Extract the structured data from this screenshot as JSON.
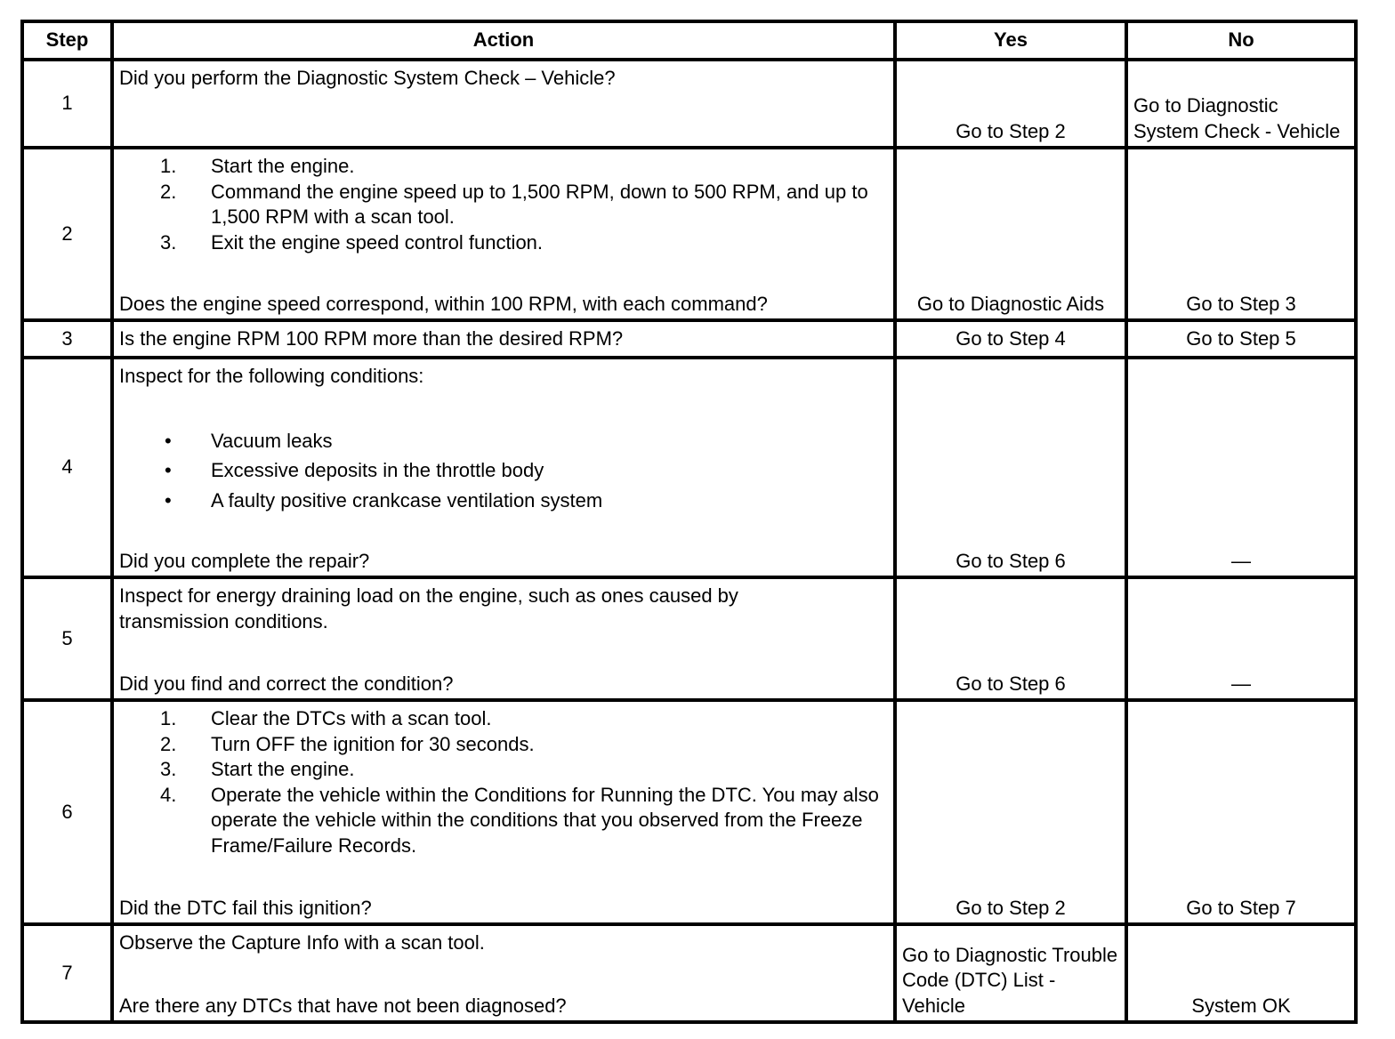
{
  "headers": {
    "step": "Step",
    "action": "Action",
    "yes": "Yes",
    "no": "No"
  },
  "rows": [
    {
      "step": "1",
      "intro": "Did you perform the Diagnostic System Check – Vehicle?",
      "yes": "Go to Step 2",
      "no": "Go to Diagnostic System Check - Vehicle"
    },
    {
      "step": "2",
      "list": [
        {
          "marker": "1.",
          "text": "Start the engine."
        },
        {
          "marker": "2.",
          "text": "Command the engine speed up to 1,500 RPM, down to 500 RPM, and up to 1,500 RPM with a scan tool."
        },
        {
          "marker": "3.",
          "text": "Exit the engine speed control function."
        }
      ],
      "question": "Does the engine speed correspond, within 100 RPM, with each command?",
      "yes": "Go to Diagnostic Aids",
      "no": "Go to Step 3"
    },
    {
      "step": "3",
      "intro": "Is the engine RPM 100 RPM more than the desired RPM?",
      "yes": "Go to Step 4",
      "no": "Go to Step 5"
    },
    {
      "step": "4",
      "intro": "Inspect for the following conditions:",
      "list": [
        {
          "marker": "•",
          "text": "Vacuum leaks"
        },
        {
          "marker": "•",
          "text": "Excessive deposits in the throttle body"
        },
        {
          "marker": "•",
          "text": "A faulty positive crankcase ventilation system"
        }
      ],
      "question": "Did you complete the repair?",
      "yes": "Go to Step 6",
      "no": "—"
    },
    {
      "step": "5",
      "intro": "Inspect for energy draining load on the engine, such as ones caused by transmission conditions.",
      "question": "Did you find and correct the condition?",
      "yes": "Go to Step 6",
      "no": "—"
    },
    {
      "step": "6",
      "list": [
        {
          "marker": "1.",
          "text": "Clear the DTCs with a scan tool."
        },
        {
          "marker": "2.",
          "text": "Turn OFF the ignition for 30 seconds."
        },
        {
          "marker": "3.",
          "text": "Start the engine."
        },
        {
          "marker": "4.",
          "text": "Operate the vehicle within the Conditions for Running the DTC. You may also operate the vehicle within the conditions that you observed from the Freeze Frame/Failure Records."
        }
      ],
      "question": "Did the DTC fail this ignition?",
      "yes": "Go to Step 2",
      "no": "Go to Step 7"
    },
    {
      "step": "7",
      "intro": "Observe the Capture Info with a scan tool.",
      "question": "Are there any DTCs that have not been diagnosed?",
      "yes": "Go to Diagnostic Trouble Code (DTC) List - Vehicle",
      "no": "System OK"
    }
  ]
}
